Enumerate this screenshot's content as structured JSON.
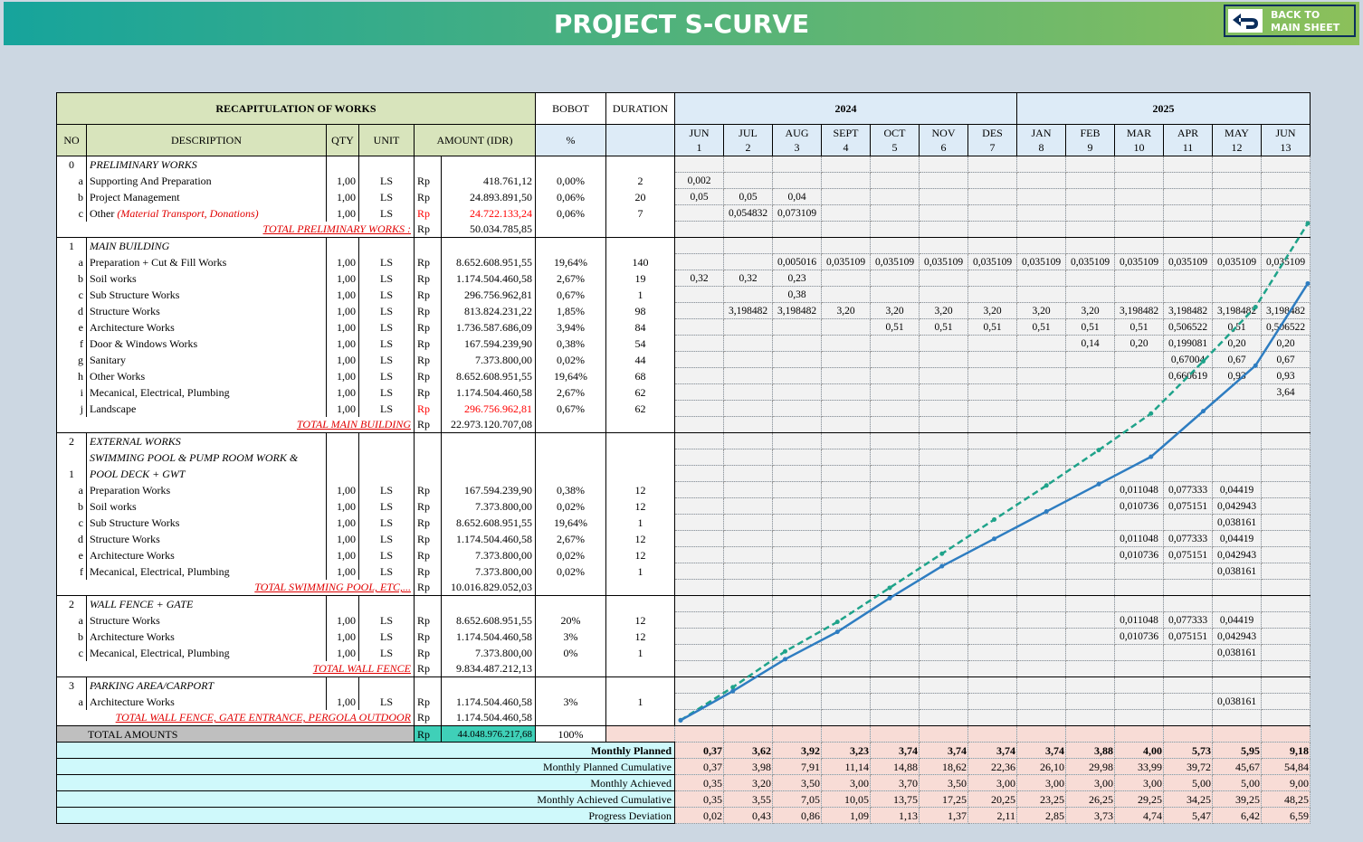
{
  "header": {
    "title": "PROJECT S-CURVE",
    "back_button": [
      "BACK TO",
      "MAIN SHEET"
    ]
  },
  "table": {
    "head": {
      "recap": "RECAPITULATION OF WORKS",
      "bobot": "BOBOT",
      "duration": "DURATION",
      "years": [
        "2024",
        "2025"
      ],
      "no": "NO",
      "description": "DESCRIPTION",
      "qty": "QTY",
      "unit": "UNIT",
      "amount": "AMOUNT (IDR)",
      "percent": "%",
      "months": [
        {
          "name": "JUN",
          "no": "1"
        },
        {
          "name": "JUL",
          "no": "2"
        },
        {
          "name": "AUG",
          "no": "3"
        },
        {
          "name": "SEPT",
          "no": "4"
        },
        {
          "name": "OCT",
          "no": "5"
        },
        {
          "name": "NOV",
          "no": "6"
        },
        {
          "name": "DES",
          "no": "7"
        },
        {
          "name": "JAN",
          "no": "8"
        },
        {
          "name": "FEB",
          "no": "9"
        },
        {
          "name": "MAR",
          "no": "10"
        },
        {
          "name": "APR",
          "no": "11"
        },
        {
          "name": "MAY",
          "no": "12"
        },
        {
          "name": "JUN",
          "no": "13"
        }
      ]
    },
    "rows": [
      {
        "no": "0",
        "section": "PRELIMINARY WORKS"
      },
      {
        "no": "a",
        "desc": "Supporting And Preparation",
        "qty": "1,00",
        "unit": "LS",
        "cur": "Rp",
        "amount": "418.761,12",
        "bobot": "0,00%",
        "duration": "2",
        "months": [
          "0,002",
          null,
          null,
          null,
          null,
          null,
          null,
          null,
          null,
          null,
          null,
          null,
          null
        ]
      },
      {
        "no": "b",
        "desc": "Project Management",
        "qty": "1,00",
        "unit": "LS",
        "cur": "Rp",
        "amount": "24.893.891,50",
        "bobot": "0,06%",
        "duration": "20",
        "months": [
          "0,05",
          "0,05",
          "0,04",
          null,
          null,
          null,
          null,
          null,
          null,
          null,
          null,
          null,
          null
        ]
      },
      {
        "no": "c",
        "desc": "Other",
        "note": "(Material Transport, Donations)",
        "qty": "1,00",
        "unit": "LS",
        "cur": "Rp",
        "amount": "24.722.133,24",
        "color": "#ff0000",
        "bobot": "0,06%",
        "duration": "7",
        "months": [
          null,
          "0,054832",
          "0,073109",
          null,
          null,
          null,
          null,
          null,
          null,
          null,
          null,
          null,
          null
        ]
      },
      {
        "total": "TOTAL PRELIMINARY WORKS :",
        "cur": "Rp",
        "amount": "50.034.785,85"
      },
      {
        "no": "1",
        "section": "MAIN BUILDING"
      },
      {
        "no": "a",
        "desc": "Preparation + Cut & Fill Works",
        "qty": "1,00",
        "unit": "LS",
        "cur": "Rp",
        "amount": "8.652.608.951,55",
        "bobot": "19,64%",
        "duration": "140",
        "months": [
          null,
          null,
          "0,005016",
          "0,035109",
          "0,035109",
          "0,035109",
          "0,035109",
          "0,035109",
          "0,035109",
          "0,035109",
          "0,035109",
          "0,035109",
          "0,035109"
        ]
      },
      {
        "no": "b",
        "desc": "Soil works",
        "qty": "1,00",
        "unit": "LS",
        "cur": "Rp",
        "amount": "1.174.504.460,58",
        "bobot": "2,67%",
        "duration": "19",
        "months": [
          "0,32",
          "0,32",
          "0,23",
          null,
          null,
          null,
          null,
          null,
          null,
          null,
          null,
          null,
          null
        ]
      },
      {
        "no": "c",
        "desc": "Sub Structure Works",
        "qty": "1,00",
        "unit": "LS",
        "cur": "Rp",
        "amount": "296.756.962,81",
        "bobot": "0,67%",
        "duration": "1",
        "months": [
          null,
          null,
          "0,38",
          null,
          null,
          null,
          null,
          null,
          null,
          null,
          null,
          null,
          null
        ]
      },
      {
        "no": "d",
        "desc": "Structure Works",
        "qty": "1,00",
        "unit": "LS",
        "cur": "Rp",
        "amount": "813.824.231,22",
        "bobot": "1,85%",
        "duration": "98",
        "months": [
          null,
          "3,198482",
          "3,198482",
          "3,20",
          "3,20",
          "3,20",
          "3,20",
          "3,20",
          "3,20",
          "3,198482",
          "3,198482",
          "3,198482",
          "3,198482"
        ]
      },
      {
        "no": "e",
        "desc": "Architecture Works",
        "qty": "1,00",
        "unit": "LS",
        "cur": "Rp",
        "amount": "1.736.587.686,09",
        "bobot": "3,94%",
        "duration": "84",
        "months": [
          null,
          null,
          null,
          null,
          "0,51",
          "0,51",
          "0,51",
          "0,51",
          "0,51",
          "0,51",
          "0,506522",
          "0,51",
          "0,506522"
        ]
      },
      {
        "no": "f",
        "desc": "Door & Windows Works",
        "qty": "1,00",
        "unit": "LS",
        "cur": "Rp",
        "amount": "167.594.239,90",
        "bobot": "0,38%",
        "duration": "54",
        "months": [
          null,
          null,
          null,
          null,
          null,
          null,
          null,
          null,
          "0,14",
          "0,20",
          "0,199081",
          "0,20",
          "0,20"
        ]
      },
      {
        "no": "g",
        "desc": "Sanitary",
        "qty": "1,00",
        "unit": "LS",
        "cur": "Rp",
        "amount": "7.373.800,00",
        "bobot": "0,02%",
        "duration": "44",
        "months": [
          null,
          null,
          null,
          null,
          null,
          null,
          null,
          null,
          null,
          null,
          "0,67004",
          "0,67",
          "0,67"
        ]
      },
      {
        "no": "h",
        "desc": "Other Works",
        "qty": "1,00",
        "unit": "LS",
        "cur": "Rp",
        "amount": "8.652.608.951,55",
        "bobot": "19,64%",
        "duration": "68",
        "months": [
          null,
          null,
          null,
          null,
          null,
          null,
          null,
          null,
          null,
          null,
          "0,660619",
          "0,93",
          "0,93"
        ]
      },
      {
        "no": "i",
        "desc": "Mecanical, Electrical, Plumbing",
        "qty": "1,00",
        "unit": "LS",
        "cur": "Rp",
        "amount": "1.174.504.460,58",
        "bobot": "2,67%",
        "duration": "62",
        "months": [
          null,
          null,
          null,
          null,
          null,
          null,
          null,
          null,
          null,
          null,
          null,
          null,
          "3,64"
        ]
      },
      {
        "no": "j",
        "desc": "Landscape",
        "qty": "1,00",
        "unit": "LS",
        "cur": "Rp",
        "amount": "296.756.962,81",
        "color": "#ff0000",
        "bobot": "0,67%",
        "duration": "62",
        "months": [
          null,
          null,
          null,
          null,
          null,
          null,
          null,
          null,
          null,
          null,
          null,
          null,
          null
        ]
      },
      {
        "total": "TOTAL MAIN BUILDING",
        "cur": "Rp",
        "amount": "22.973.120.707,08"
      },
      {
        "no": "2",
        "section": "EXTERNAL WORKS"
      },
      {
        "section": "SWIMMING POOL & PUMP ROOM WORK &"
      },
      {
        "no": "1",
        "section": "POOL DECK + GWT"
      },
      {
        "no": "a",
        "desc": "Preparation Works",
        "qty": "1,00",
        "unit": "LS",
        "cur": "Rp",
        "amount": "167.594.239,90",
        "bobot": "0,38%",
        "duration": "12",
        "months": [
          null,
          null,
          null,
          null,
          null,
          null,
          null,
          null,
          null,
          "0,011048",
          "0,077333",
          "0,04419",
          null
        ]
      },
      {
        "no": "b",
        "desc": "Soil works",
        "qty": "1,00",
        "unit": "LS",
        "cur": "Rp",
        "amount": "7.373.800,00",
        "bobot": "0,02%",
        "duration": "12",
        "months": [
          null,
          null,
          null,
          null,
          null,
          null,
          null,
          null,
          null,
          "0,010736",
          "0,075151",
          "0,042943",
          null
        ]
      },
      {
        "no": "c",
        "desc": "Sub Structure Works",
        "qty": "1,00",
        "unit": "LS",
        "cur": "Rp",
        "amount": "8.652.608.951,55",
        "bobot": "19,64%",
        "duration": "1",
        "months": [
          null,
          null,
          null,
          null,
          null,
          null,
          null,
          null,
          null,
          null,
          null,
          "0,038161",
          null
        ]
      },
      {
        "no": "d",
        "desc": "Structure Works",
        "qty": "1,00",
        "unit": "LS",
        "cur": "Rp",
        "amount": "1.174.504.460,58",
        "bobot": "2,67%",
        "duration": "12",
        "months": [
          null,
          null,
          null,
          null,
          null,
          null,
          null,
          null,
          null,
          "0,011048",
          "0,077333",
          "0,04419",
          null
        ]
      },
      {
        "no": "e",
        "desc": "Architecture Works",
        "qty": "1,00",
        "unit": "LS",
        "cur": "Rp",
        "amount": "7.373.800,00",
        "bobot": "0,02%",
        "duration": "12",
        "months": [
          null,
          null,
          null,
          null,
          null,
          null,
          null,
          null,
          null,
          "0,010736",
          "0,075151",
          "0,042943",
          null
        ]
      },
      {
        "no": "f",
        "desc": "Mecanical, Electrical, Plumbing",
        "qty": "1,00",
        "unit": "LS",
        "cur": "Rp",
        "amount": "7.373.800,00",
        "bobot": "0,02%",
        "duration": "1",
        "months": [
          null,
          null,
          null,
          null,
          null,
          null,
          null,
          null,
          null,
          null,
          null,
          "0,038161",
          null
        ]
      },
      {
        "total": "TOTAL SWIMMING POOL, ETC,...",
        "cur": "Rp",
        "amount": "10.016.829.052,03"
      },
      {
        "no": "2",
        "section": "WALL FENCE + GATE"
      },
      {
        "no": "a",
        "desc": "Structure Works",
        "qty": "1,00",
        "unit": "LS",
        "cur": "Rp",
        "amount": "8.652.608.951,55",
        "bobot": "20%",
        "duration": "12",
        "months": [
          null,
          null,
          null,
          null,
          null,
          null,
          null,
          null,
          null,
          "0,011048",
          "0,077333",
          "0,04419",
          null
        ]
      },
      {
        "no": "b",
        "desc": "Architecture Works",
        "qty": "1,00",
        "unit": "LS",
        "cur": "Rp",
        "amount": "1.174.504.460,58",
        "bobot": "3%",
        "duration": "12",
        "months": [
          null,
          null,
          null,
          null,
          null,
          null,
          null,
          null,
          null,
          "0,010736",
          "0,075151",
          "0,042943",
          null
        ]
      },
      {
        "no": "c",
        "desc": "Mecanical, Electrical, Plumbing",
        "qty": "1,00",
        "unit": "LS",
        "cur": "Rp",
        "amount": "7.373.800,00",
        "bobot": "0%",
        "duration": "1",
        "months": [
          null,
          null,
          null,
          null,
          null,
          null,
          null,
          null,
          null,
          null,
          null,
          "0,038161",
          null
        ]
      },
      {
        "total": "TOTAL WALL FENCE",
        "cur": "Rp",
        "amount": "9.834.487.212,13"
      },
      {
        "no": "3",
        "section": "PARKING AREA/CARPORT"
      },
      {
        "no": "a",
        "desc": "Architecture Works",
        "qty": "1,00",
        "unit": "LS",
        "cur": "Rp",
        "amount": "1.174.504.460,58",
        "bobot": "3%",
        "duration": "1",
        "months": [
          null,
          null,
          null,
          null,
          null,
          null,
          null,
          null,
          null,
          null,
          null,
          "0,038161",
          null
        ]
      },
      {
        "total": "TOTAL WALL FENCE, GATE ENTRANCE, PERGOLA OUTDOOR",
        "cur": "Rp",
        "amount": "1.174.504.460,58"
      }
    ],
    "grand_total": {
      "label": "TOTAL  AMOUNTS",
      "cur": "Rp",
      "amount": "44.048.976.217,68",
      "bobot": "100%"
    },
    "summary": {
      "labels": [
        "Monthly Planned",
        "Monthly Planned Cumulative",
        "Monthly Achieved",
        "Monthly Achieved Cumulative",
        "Progress Deviation"
      ],
      "values": [
        [
          "0,37",
          "3,62",
          "3,92",
          "3,23",
          "3,74",
          "3,74",
          "3,74",
          "3,74",
          "3,88",
          "4,00",
          "5,73",
          "5,95",
          "9,18"
        ],
        [
          "0,37",
          "3,98",
          "7,91",
          "11,14",
          "14,88",
          "18,62",
          "22,36",
          "26,10",
          "29,98",
          "33,99",
          "39,72",
          "45,67",
          "54,84"
        ],
        [
          "0,35",
          "3,20",
          "3,50",
          "3,00",
          "3,70",
          "3,50",
          "3,00",
          "3,00",
          "3,00",
          "3,00",
          "5,00",
          "5,00",
          "9,00"
        ],
        [
          "0,35",
          "3,55",
          "7,05",
          "10,05",
          "13,75",
          "17,25",
          "20,25",
          "23,25",
          "26,25",
          "29,25",
          "34,25",
          "39,25",
          "48,25"
        ],
        [
          "0,02",
          "0,43",
          "0,86",
          "1,09",
          "1,13",
          "1,37",
          "2,11",
          "2,85",
          "3,73",
          "4,74",
          "5,47",
          "6,42",
          "6,59"
        ]
      ]
    },
    "curves": {
      "planned_color": "#1fa38a",
      "achieved_color": "#2e7dc1"
    }
  }
}
